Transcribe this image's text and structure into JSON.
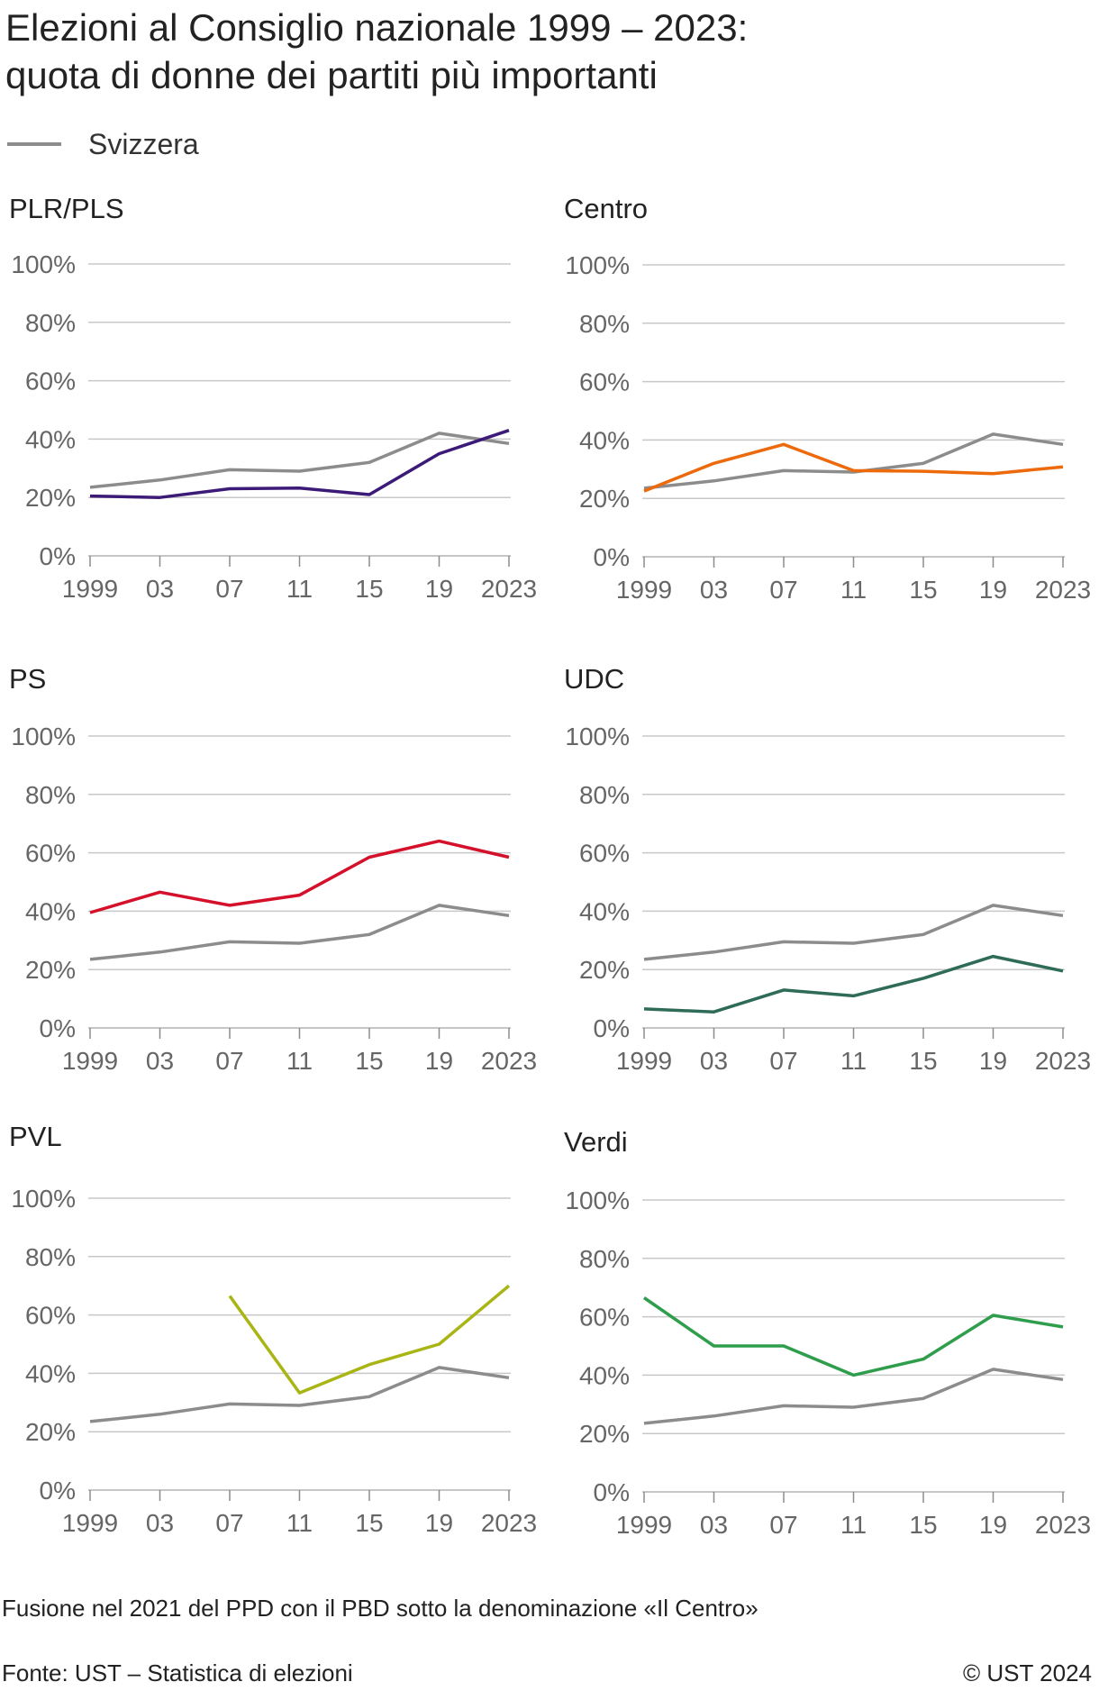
{
  "title_line1": "Elezioni al Consiglio nazionale 1999 – 2023:",
  "title_line2": "quota di donne dei partiti più importanti",
  "legend": {
    "label": "Svizzera",
    "color": "#8c8c8c"
  },
  "note": "Fusione nel 2021 del PPD con il PBD sotto la denominazione «Il Centro»",
  "source": "Fonte: UST – Statistica di elezioni",
  "copyright": "© UST 2024",
  "chart_data": [
    {
      "type": "line",
      "title": "PLR/PLS",
      "x": [
        "1999",
        "03",
        "07",
        "11",
        "15",
        "19",
        "2023"
      ],
      "yticks": [
        "0%",
        "20%",
        "40%",
        "60%",
        "80%",
        "100%"
      ],
      "ylim": [
        0,
        100
      ],
      "series": [
        {
          "name": "Svizzera",
          "color": "#8c8c8c",
          "values": [
            23.5,
            26,
            29.5,
            29,
            32,
            42,
            38.5
          ]
        },
        {
          "color": "#3c1a78",
          "values": [
            20.5,
            20,
            23,
            23.2,
            21,
            35,
            43
          ]
        }
      ]
    },
    {
      "type": "line",
      "title": "Centro",
      "x": [
        "1999",
        "03",
        "07",
        "11",
        "15",
        "19",
        "2023"
      ],
      "yticks": [
        "0%",
        "20%",
        "40%",
        "60%",
        "80%",
        "100%"
      ],
      "ylim": [
        0,
        100
      ],
      "series": [
        {
          "name": "Svizzera",
          "color": "#8c8c8c",
          "values": [
            23.5,
            26,
            29.5,
            29,
            32,
            42,
            38.5
          ]
        },
        {
          "color": "#ec6a0c",
          "values": [
            22.5,
            32,
            38.5,
            29.5,
            29.3,
            28.5,
            30.8
          ]
        }
      ]
    },
    {
      "type": "line",
      "title": "PS",
      "x": [
        "1999",
        "03",
        "07",
        "11",
        "15",
        "19",
        "2023"
      ],
      "yticks": [
        "0%",
        "20%",
        "40%",
        "60%",
        "80%",
        "100%"
      ],
      "ylim": [
        0,
        100
      ],
      "series": [
        {
          "name": "Svizzera",
          "color": "#8c8c8c",
          "values": [
            23.5,
            26,
            29.5,
            29,
            32,
            42,
            38.5
          ]
        },
        {
          "color": "#d4102a",
          "values": [
            39.5,
            46.5,
            42,
            45.5,
            58.5,
            64,
            58.5
          ]
        }
      ]
    },
    {
      "type": "line",
      "title": "UDC",
      "x": [
        "1999",
        "03",
        "07",
        "11",
        "15",
        "19",
        "2023"
      ],
      "yticks": [
        "0%",
        "20%",
        "40%",
        "60%",
        "80%",
        "100%"
      ],
      "ylim": [
        0,
        100
      ],
      "series": [
        {
          "name": "Svizzera",
          "color": "#8c8c8c",
          "values": [
            23.5,
            26,
            29.5,
            29,
            32,
            42,
            38.5
          ]
        },
        {
          "color": "#2e6b58",
          "values": [
            6.5,
            5.5,
            13,
            11,
            17,
            24.5,
            19.5
          ]
        }
      ]
    },
    {
      "type": "line",
      "title": "PVL",
      "x": [
        "1999",
        "03",
        "07",
        "11",
        "15",
        "19",
        "2023"
      ],
      "yticks": [
        "0%",
        "20%",
        "40%",
        "60%",
        "80%",
        "100%"
      ],
      "ylim": [
        0,
        100
      ],
      "series": [
        {
          "name": "Svizzera",
          "color": "#8c8c8c",
          "values": [
            23.5,
            26,
            29.5,
            29,
            32,
            42,
            38.5
          ]
        },
        {
          "color": "#a8b514",
          "values": [
            null,
            null,
            66.5,
            33.3,
            43,
            50,
            70
          ]
        }
      ]
    },
    {
      "type": "line",
      "title": "Verdi",
      "x": [
        "1999",
        "03",
        "07",
        "11",
        "15",
        "19",
        "2023"
      ],
      "yticks": [
        "0%",
        "20%",
        "40%",
        "60%",
        "80%",
        "100%"
      ],
      "ylim": [
        0,
        100
      ],
      "series": [
        {
          "name": "Svizzera",
          "color": "#8c8c8c",
          "values": [
            23.5,
            26,
            29.5,
            29,
            32,
            42,
            38.5
          ]
        },
        {
          "color": "#2f9e4c",
          "values": [
            66.5,
            50,
            50,
            40,
            45.5,
            60.5,
            56.5
          ]
        }
      ]
    }
  ]
}
